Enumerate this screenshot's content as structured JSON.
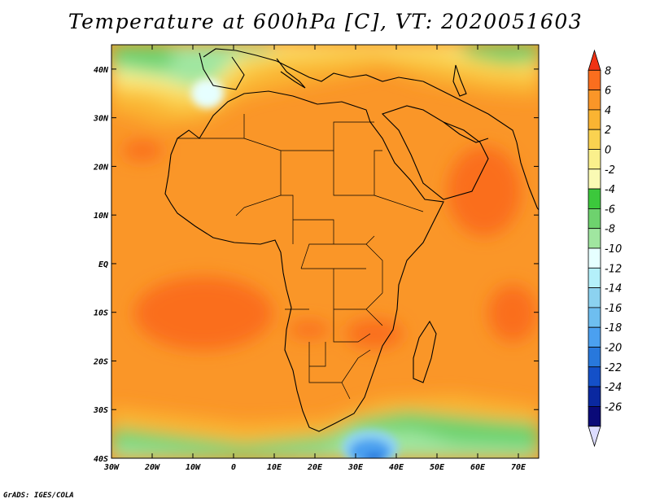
{
  "title": "Temperature at 600hPa [C], VT: 2020051603",
  "footer": "GrADS: IGES/COLA",
  "map": {
    "lon_range": [
      -30,
      75
    ],
    "lat_range": [
      -40,
      45
    ],
    "x_ticks": [
      {
        "lon": -30,
        "label": "30W"
      },
      {
        "lon": -20,
        "label": "20W"
      },
      {
        "lon": -10,
        "label": "10W"
      },
      {
        "lon": 0,
        "label": "0"
      },
      {
        "lon": 10,
        "label": "10E"
      },
      {
        "lon": 20,
        "label": "20E"
      },
      {
        "lon": 30,
        "label": "30E"
      },
      {
        "lon": 40,
        "label": "40E"
      },
      {
        "lon": 50,
        "label": "50E"
      },
      {
        "lon": 60,
        "label": "60E"
      },
      {
        "lon": 70,
        "label": "70E"
      }
    ],
    "y_ticks": [
      {
        "lat": 40,
        "label": "40N"
      },
      {
        "lat": 30,
        "label": "30N"
      },
      {
        "lat": 20,
        "label": "20N"
      },
      {
        "lat": 10,
        "label": "10N"
      },
      {
        "lat": 0,
        "label": "EQ"
      },
      {
        "lat": -10,
        "label": "10S"
      },
      {
        "lat": -20,
        "label": "20S"
      },
      {
        "lat": -30,
        "label": "30S"
      },
      {
        "lat": -40,
        "label": "40S"
      }
    ]
  },
  "colorbar": {
    "labels": [
      "8",
      "6",
      "4",
      "2",
      "0",
      "-2",
      "-4",
      "-6",
      "-8",
      "-10",
      "-12",
      "-14",
      "-16",
      "-18",
      "-20",
      "-22",
      "-24",
      "-26"
    ],
    "colors": [
      "#f03214",
      "#fa6e1e",
      "#fa9628",
      "#fab432",
      "#fad250",
      "#faf08c",
      "#fafab4",
      "#3cc83c",
      "#6ed26e",
      "#a0e6a0",
      "#e6ffff",
      "#b4f0fa",
      "#8cd2f0",
      "#6ebef0",
      "#4ba0f0",
      "#2878dc",
      "#1450c8",
      "#0a28a0",
      "#0a0a78",
      "#dcdcff"
    ]
  }
}
